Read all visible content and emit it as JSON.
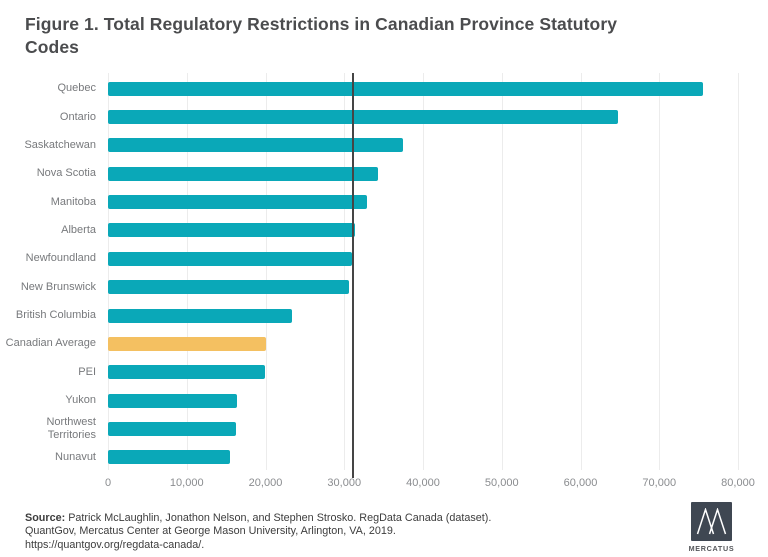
{
  "title": "Figure 1. Total Regulatory Restrictions in Canadian Province Statutory Codes",
  "chart_data": {
    "type": "bar",
    "orientation": "horizontal",
    "title": "Figure 1. Total Regulatory Restrictions in Canadian Province Statutory Codes",
    "xlabel": "",
    "ylabel": "",
    "xlim": [
      0,
      80000
    ],
    "grid": "vertical",
    "categories": [
      "Quebec",
      "Ontario",
      "Saskatchewan",
      "Nova Scotia",
      "Manitoba",
      "Alberta",
      "Newfoundland",
      "New Brunswick",
      "British Columbia",
      "Canadian Average",
      "PEI",
      "Yukon",
      "Northwest Territories",
      "Nunavut"
    ],
    "values": [
      75500,
      64800,
      37400,
      34300,
      32900,
      31400,
      31000,
      30600,
      23400,
      20100,
      19900,
      16400,
      16200,
      15500
    ],
    "highlight_category": "Canadian Average",
    "reference_line_value": 31100,
    "x_ticks": [
      0,
      10000,
      20000,
      30000,
      40000,
      50000,
      60000,
      70000,
      80000
    ],
    "x_tick_labels": [
      "0",
      "10,000",
      "20,000",
      "30,000",
      "40,000",
      "50,000",
      "60,000",
      "70,000",
      "80,000"
    ],
    "colors": {
      "bar": "#0aa8b8",
      "highlight": "#f4c061",
      "reference_line": "#454545",
      "gridline": "#ececec"
    }
  },
  "footer": {
    "source_label": "Source:",
    "source_rest": " Patrick McLaughlin, Jonathon Nelson, and Stephen Strosko. RegData Canada (dataset).",
    "line2": "QuantGov, Mercatus Center at George Mason University, Arlington, VA, 2019.",
    "line3": "https://quantgov.org/regdata-canada/."
  },
  "logo": {
    "text": "MERCATUS"
  }
}
